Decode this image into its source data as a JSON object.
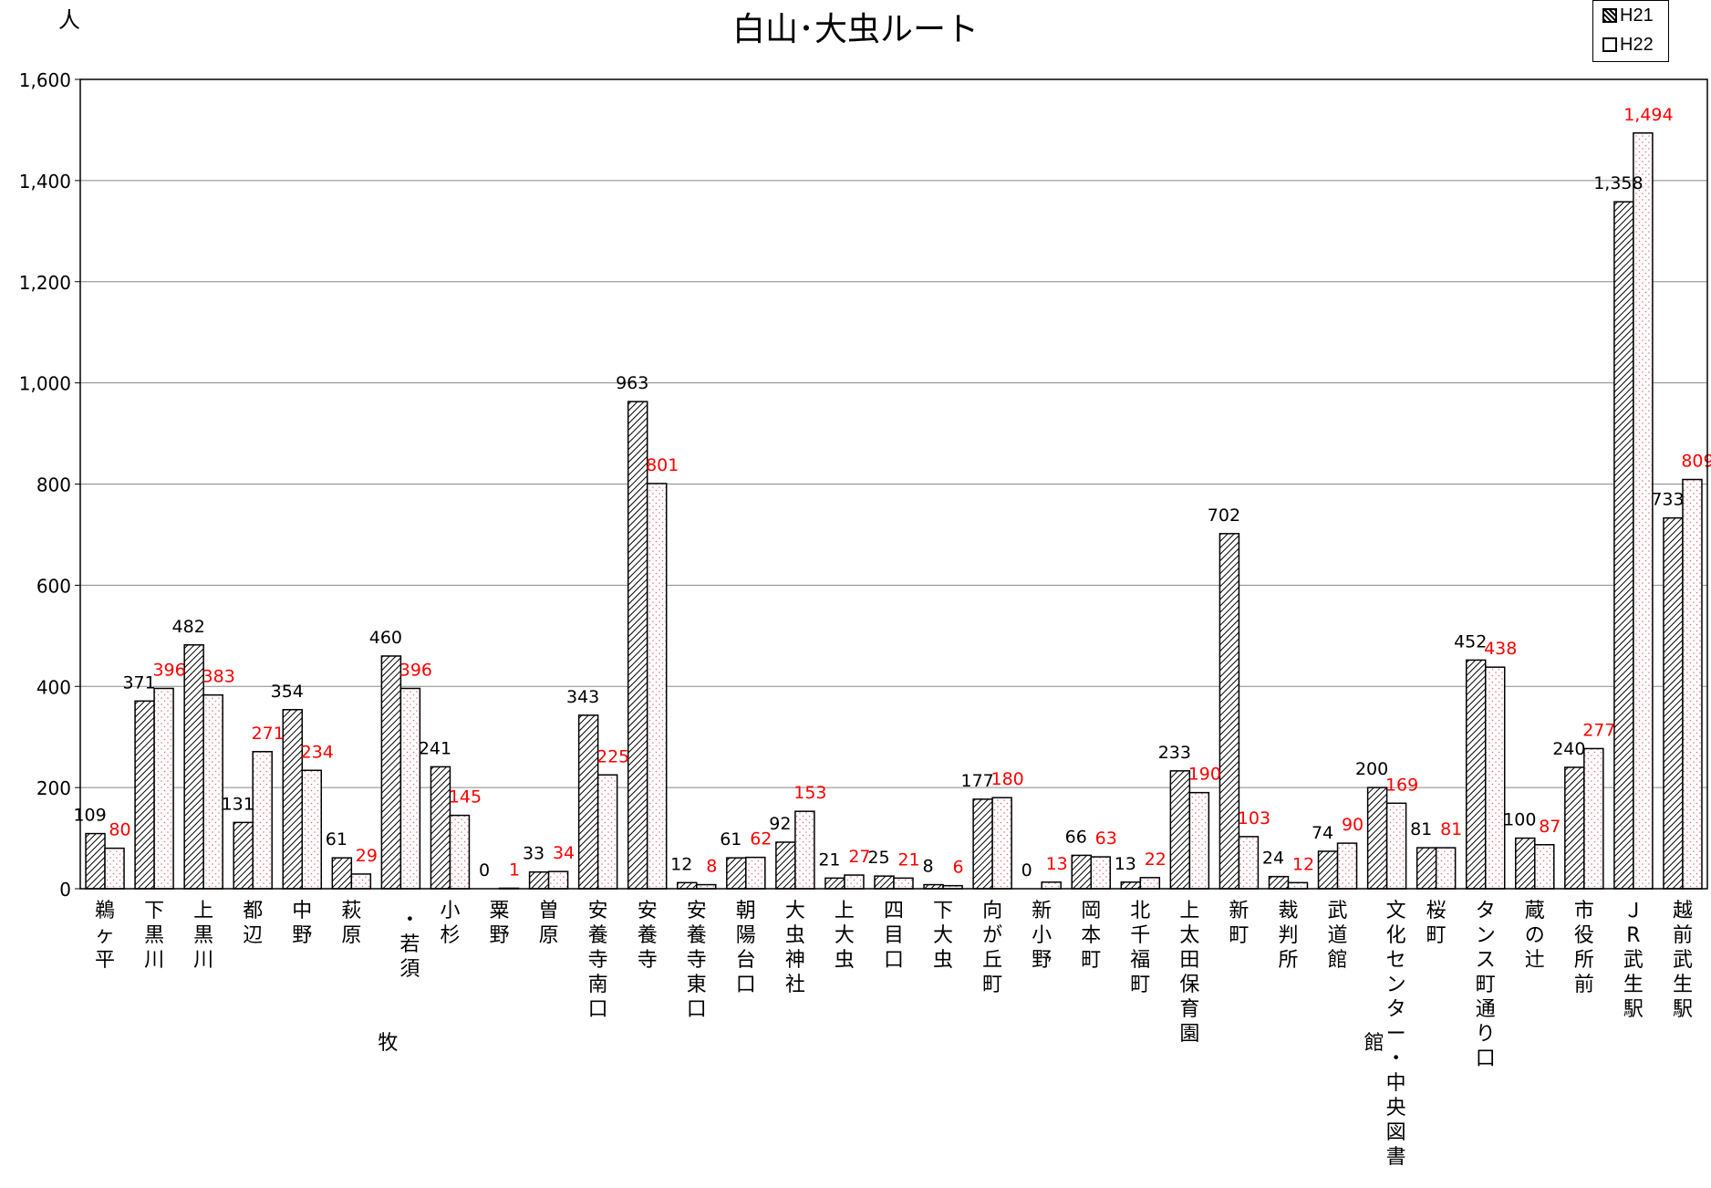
{
  "chart_data": {
    "type": "bar",
    "title": "白山･大虫ルート",
    "ylabel": "人",
    "ylim": [
      0,
      1600
    ],
    "yticks": [
      "0",
      "200",
      "400",
      "600",
      "800",
      "1,000",
      "1,200",
      "1,400",
      "1,600"
    ],
    "ytick_values": [
      0,
      200,
      400,
      600,
      800,
      1000,
      1200,
      1400,
      1600
    ],
    "grid": true,
    "legend_position": "top-right",
    "categories": [
      "鵜ヶ平",
      "下黒川",
      "上黒川",
      "都辺",
      "中野",
      "萩原",
      "牧・若須",
      "小杉",
      "粟野",
      "曽原",
      "安養寺南口",
      "安養寺",
      "安養寺東口",
      "朝陽台口",
      "大虫神社",
      "上大虫",
      "四目口",
      "下大虫",
      "向が丘町",
      "新小野",
      "岡本町",
      "北千福町",
      "上太田保育園",
      "新町",
      "裁判所",
      "武道館",
      "文化センター・中央図書館",
      "桜町",
      "タンス町通り口",
      "蔵の辻",
      "市役所前",
      "JR武生駅",
      "越前武生駅"
    ],
    "category_columns": [
      [
        "鵜ヶ平"
      ],
      [
        "下黒川"
      ],
      [
        "上黒川"
      ],
      [
        "都辺"
      ],
      [
        "中野"
      ],
      [
        "萩原"
      ],
      [
        "牧",
        "・若須"
      ],
      [
        "小杉"
      ],
      [
        "粟野"
      ],
      [
        "曽原"
      ],
      [
        "安養寺南口"
      ],
      [
        "安養寺"
      ],
      [
        "安養寺東口"
      ],
      [
        "朝陽台口"
      ],
      [
        "大虫神社"
      ],
      [
        "上大虫"
      ],
      [
        "四目口"
      ],
      [
        "下大虫"
      ],
      [
        "向が丘町"
      ],
      [
        "新小野"
      ],
      [
        "岡本町"
      ],
      [
        "北千福町"
      ],
      [
        "上太田保育園"
      ],
      [
        "新町"
      ],
      [
        "裁判所"
      ],
      [
        "武道館"
      ],
      [
        "館",
        "文化センター・中央図書"
      ],
      [
        "桜町"
      ],
      [
        "タンス町通り口"
      ],
      [
        "蔵の辻"
      ],
      [
        "市役所前"
      ],
      [
        "ＪR武生駅"
      ],
      [
        "越前武生駅"
      ]
    ],
    "series": [
      {
        "name": "H21",
        "pattern": "hatched",
        "label_color": "#000000",
        "values": [
          109,
          371,
          482,
          131,
          354,
          61,
          460,
          241,
          0,
          33,
          343,
          963,
          12,
          61,
          92,
          21,
          25,
          8,
          177,
          0,
          66,
          13,
          233,
          702,
          24,
          74,
          200,
          81,
          452,
          100,
          240,
          1358,
          733
        ],
        "labels": [
          "109",
          "371",
          "482",
          "131",
          "354",
          "61",
          "460",
          "241",
          "0",
          "33",
          "343",
          "963",
          "12",
          "61",
          "92",
          "21",
          "25",
          "8",
          "177",
          "0",
          "66",
          "13",
          "233",
          "702",
          "24",
          "74",
          "200",
          "81",
          "452",
          "100",
          "240",
          "1,358",
          "733"
        ]
      },
      {
        "name": "H22",
        "pattern": "dotted",
        "label_color": "#ff0000",
        "values": [
          80,
          396,
          383,
          271,
          234,
          29,
          396,
          145,
          1,
          34,
          225,
          801,
          8,
          62,
          153,
          27,
          21,
          6,
          180,
          13,
          63,
          22,
          190,
          103,
          12,
          90,
          169,
          81,
          438,
          87,
          277,
          1494,
          809
        ],
        "labels": [
          "80",
          "396",
          "383",
          "271",
          "234",
          "29",
          "396",
          "145",
          "1",
          "34",
          "225",
          "801",
          "8",
          "62",
          "153",
          "27",
          "21",
          "6",
          "180",
          "13",
          "63",
          "22",
          "190",
          "103",
          "12",
          "90",
          "169",
          "81",
          "438",
          "87",
          "277",
          "1,494",
          "809"
        ]
      }
    ]
  }
}
